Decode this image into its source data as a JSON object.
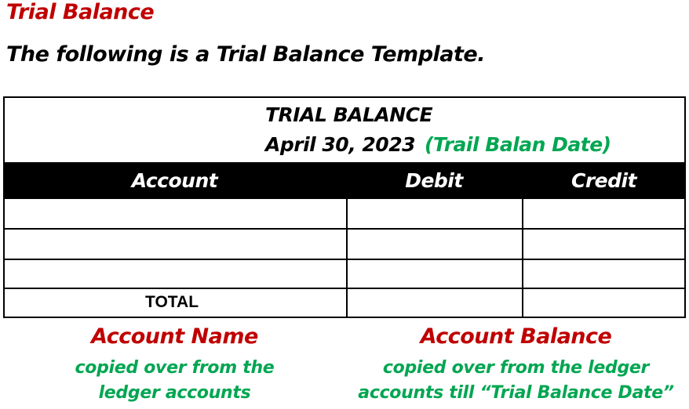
{
  "section_heading": "Trial Balance",
  "intro_text": "The following is a Trial Balance Template.",
  "trial_balance": {
    "title": "TRIAL BALANCE",
    "date": "April 30, 2023",
    "date_note": "(Trail Balan Date)",
    "columns": [
      "Account",
      "Debit",
      "Credit"
    ],
    "rows": [
      {
        "account": "",
        "debit": "",
        "credit": ""
      },
      {
        "account": "",
        "debit": "",
        "credit": ""
      },
      {
        "account": "",
        "debit": "",
        "credit": ""
      }
    ],
    "total_label": "TOTAL"
  },
  "annotations": {
    "left": {
      "title": "Account Name",
      "line1": "copied over from the",
      "line2": "ledger accounts"
    },
    "right": {
      "title": "Account Balance",
      "line1": "copied over from the ledger",
      "line2": "accounts till “Trial Balance Date”"
    }
  },
  "colors": {
    "heading_red": "#c00000",
    "note_green": "#00a651",
    "header_bar": "#000000"
  }
}
